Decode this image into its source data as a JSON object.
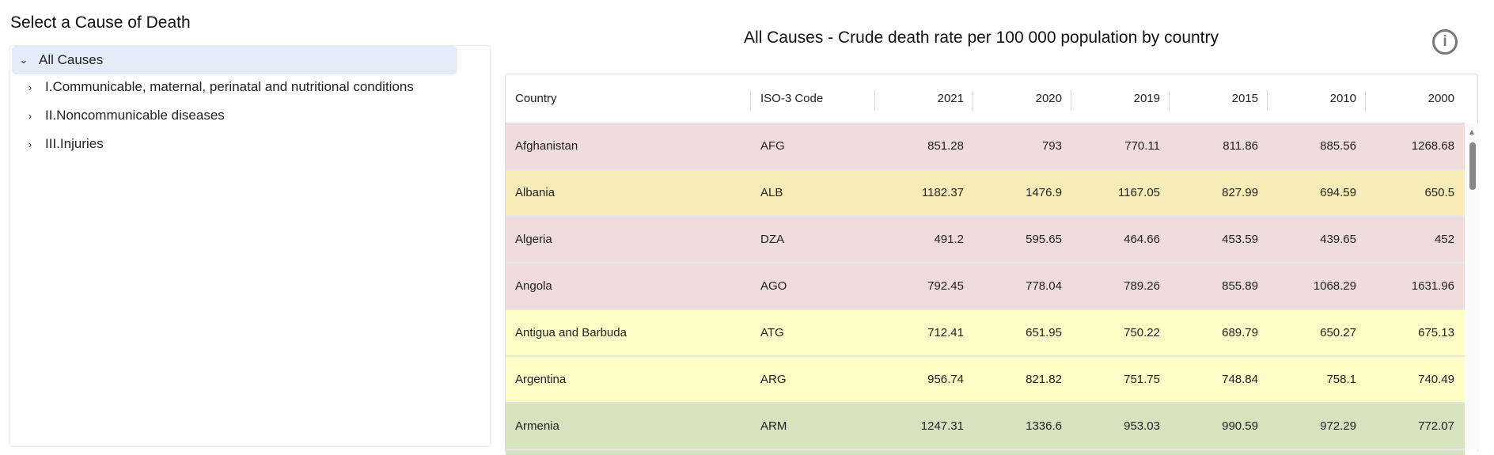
{
  "sidebar": {
    "title": "Select a Cause of Death",
    "items": [
      {
        "label": "All Causes",
        "expanded": true,
        "selected": true
      },
      {
        "label": "I.Communicable, maternal, perinatal and nutritional conditions",
        "expanded": false
      },
      {
        "label": "II.Noncommunicable diseases",
        "expanded": false
      },
      {
        "label": "III.Injuries",
        "expanded": false
      }
    ]
  },
  "main": {
    "title": "All Causes - Crude death rate per 100 000 population by country",
    "info_icon": "info-circle-icon"
  },
  "table": {
    "columns": [
      "Country",
      "ISO-3 Code",
      "2021",
      "2020",
      "2019",
      "2015",
      "2010",
      "2000"
    ],
    "rows": [
      {
        "cells": [
          "Afghanistan",
          "AFG",
          "851.28",
          "793",
          "770.11",
          "811.86",
          "885.56",
          "1268.68"
        ],
        "color": "#f0dcdc"
      },
      {
        "cells": [
          "Albania",
          "ALB",
          "1182.37",
          "1476.9",
          "1167.05",
          "827.99",
          "694.59",
          "650.5"
        ],
        "color": "#f7ecb8"
      },
      {
        "cells": [
          "Algeria",
          "DZA",
          "491.2",
          "595.65",
          "464.66",
          "453.59",
          "439.65",
          "452"
        ],
        "color": "#f0dcdc"
      },
      {
        "cells": [
          "Angola",
          "AGO",
          "792.45",
          "778.04",
          "789.26",
          "855.89",
          "1068.29",
          "1631.96"
        ],
        "color": "#f0dcdc"
      },
      {
        "cells": [
          "Antigua and Barbuda",
          "ATG",
          "712.41",
          "651.95",
          "750.22",
          "689.79",
          "650.27",
          "675.13"
        ],
        "color": "#fefdc8"
      },
      {
        "cells": [
          "Argentina",
          "ARG",
          "956.74",
          "821.82",
          "751.75",
          "748.84",
          "758.1",
          "740.49"
        ],
        "color": "#fefdc8"
      },
      {
        "cells": [
          "Armenia",
          "ARM",
          "1247.31",
          "1336.6",
          "953.03",
          "990.59",
          "972.29",
          "772.07"
        ],
        "color": "#d7e2bf"
      },
      {
        "cells": [
          "",
          "",
          "",
          "",
          "",
          "",
          "",
          ""
        ],
        "color": "#d7e2bf"
      }
    ]
  }
}
